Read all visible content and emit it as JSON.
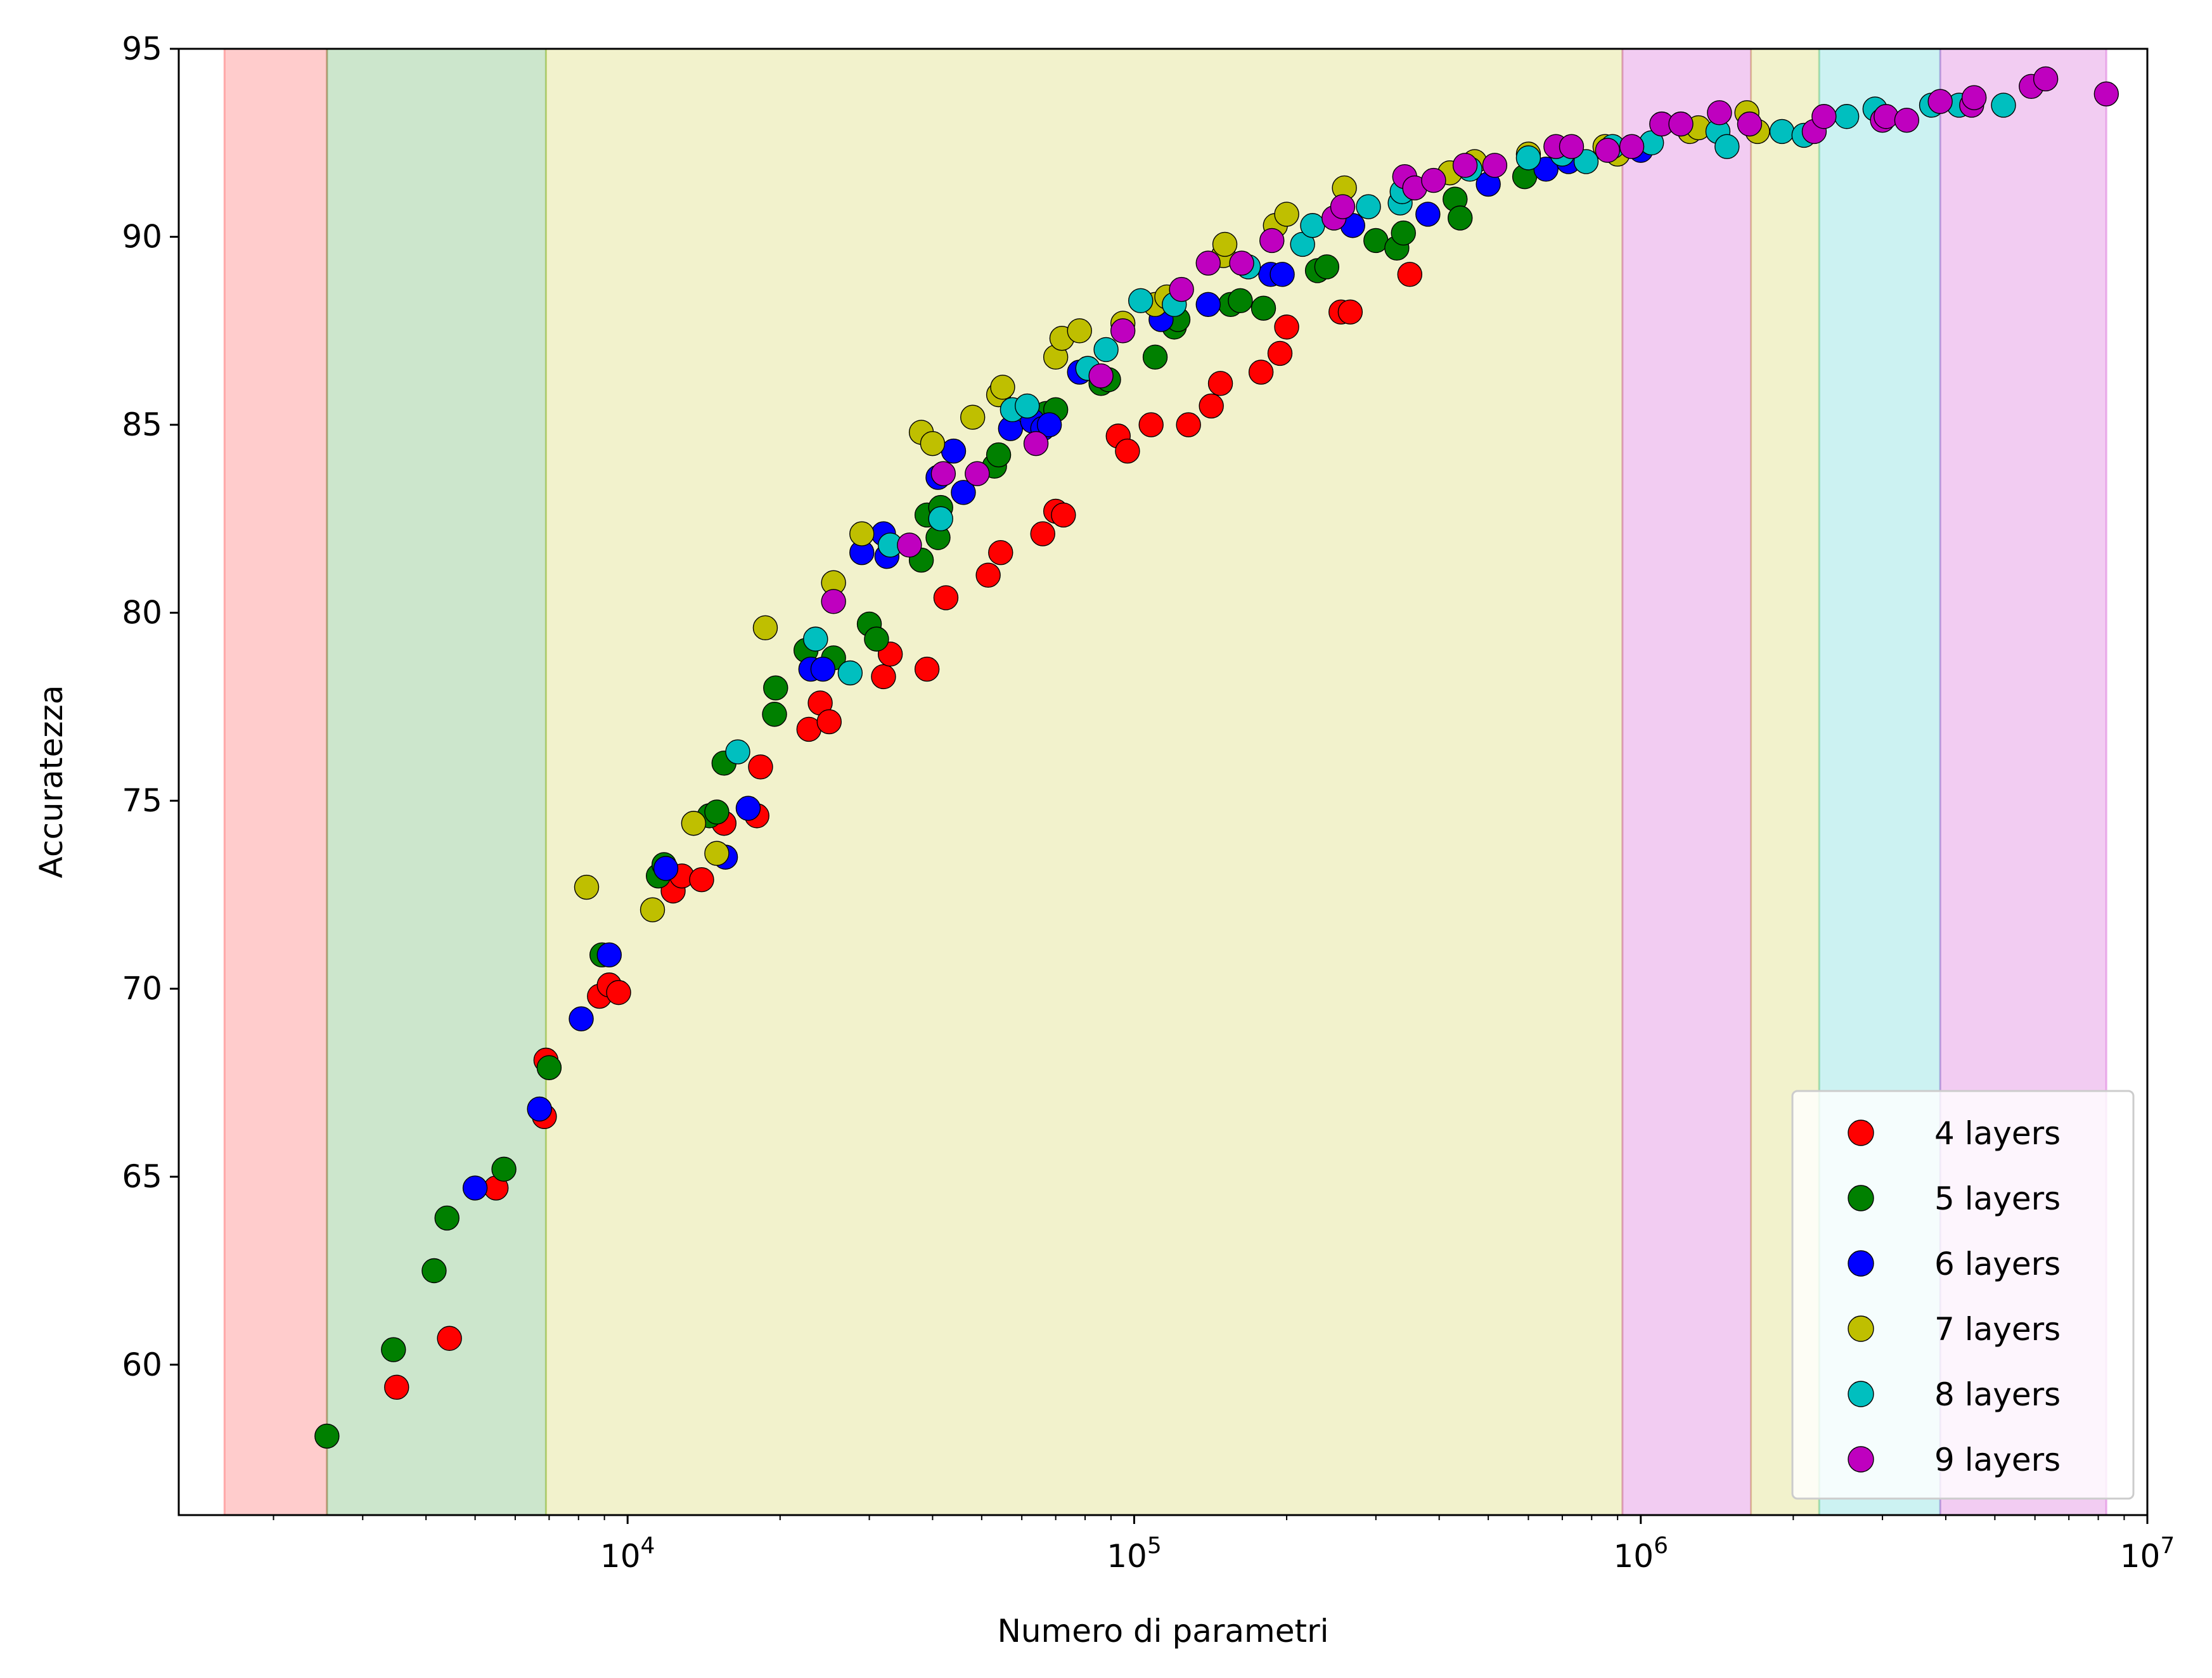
{
  "chart_data": {
    "type": "scatter",
    "title": "",
    "xlabel": "Numero di parametri",
    "ylabel": "Accuratezza",
    "xscale": "log",
    "xlim": [
      1300,
      10000000
    ],
    "ylim": [
      56,
      95
    ],
    "x_ticks": [
      {
        "value": 10000,
        "base": "10",
        "exp": "4"
      },
      {
        "value": 100000,
        "base": "10",
        "exp": "5"
      },
      {
        "value": 1000000,
        "base": "10",
        "exp": "6"
      },
      {
        "value": 10000000,
        "base": "10",
        "exp": "7"
      }
    ],
    "y_ticks": [
      "60",
      "65",
      "70",
      "75",
      "80",
      "85",
      "90",
      "95"
    ],
    "grid": false,
    "legend_position": "lower right",
    "bands": [
      {
        "x0": 1600,
        "x1": 2550,
        "color": "#ff0000"
      },
      {
        "x0": 2550,
        "x1": 6900,
        "color": "#008000"
      },
      {
        "x0": 6900,
        "x1": 920000,
        "color": "#bfbf00"
      },
      {
        "x0": 920000,
        "x1": 1650000,
        "color": "#bf00bf"
      },
      {
        "x0": 1650000,
        "x1": 2250000,
        "color": "#bfbf00"
      },
      {
        "x0": 2250000,
        "x1": 3900000,
        "color": "#00bfbf"
      },
      {
        "x0": 3900000,
        "x1": 8300000,
        "color": "#bf00bf"
      }
    ],
    "series": [
      {
        "name": "4 layers",
        "color": "#ff0000",
        "points": [
          [
            3500,
            59.4
          ],
          [
            4450,
            60.7
          ],
          [
            5500,
            64.7
          ],
          [
            6850,
            66.6
          ],
          [
            6900,
            68.1
          ],
          [
            8800,
            69.8
          ],
          [
            9200,
            70.1
          ],
          [
            9600,
            69.9
          ],
          [
            12300,
            72.6
          ],
          [
            12800,
            73.0
          ],
          [
            14000,
            72.9
          ],
          [
            15500,
            74.4
          ],
          [
            18000,
            74.6
          ],
          [
            18300,
            75.9
          ],
          [
            22800,
            76.9
          ],
          [
            24000,
            77.6
          ],
          [
            25000,
            77.1
          ],
          [
            32000,
            78.3
          ],
          [
            33000,
            78.9
          ],
          [
            39000,
            78.5
          ],
          [
            42500,
            80.4
          ],
          [
            51500,
            81.0
          ],
          [
            54500,
            81.6
          ],
          [
            66000,
            82.1
          ],
          [
            70000,
            82.7
          ],
          [
            72500,
            82.6
          ],
          [
            93000,
            84.7
          ],
          [
            97000,
            84.3
          ],
          [
            108000,
            85.0
          ],
          [
            128000,
            85.0
          ],
          [
            142000,
            85.5
          ],
          [
            148000,
            86.1
          ],
          [
            178000,
            86.4
          ],
          [
            194000,
            86.9
          ],
          [
            200000,
            87.6
          ],
          [
            256000,
            88.0
          ],
          [
            267000,
            88.0
          ],
          [
            350000,
            89.0
          ]
        ]
      },
      {
        "name": "5 layers",
        "color": "#008000",
        "points": [
          [
            2550,
            58.1
          ],
          [
            3450,
            60.4
          ],
          [
            4150,
            62.5
          ],
          [
            4400,
            63.9
          ],
          [
            5700,
            65.2
          ],
          [
            7000,
            67.9
          ],
          [
            8900,
            70.9
          ],
          [
            11500,
            73.0
          ],
          [
            11800,
            73.3
          ],
          [
            14500,
            74.6
          ],
          [
            15000,
            74.7
          ],
          [
            15500,
            76.0
          ],
          [
            19500,
            77.3
          ],
          [
            19600,
            78.0
          ],
          [
            22500,
            79.0
          ],
          [
            25500,
            78.8
          ],
          [
            30000,
            79.7
          ],
          [
            31000,
            79.3
          ],
          [
            38000,
            81.4
          ],
          [
            39000,
            82.6
          ],
          [
            41000,
            82.0
          ],
          [
            41500,
            82.8
          ],
          [
            53000,
            83.9
          ],
          [
            54000,
            84.2
          ],
          [
            67000,
            85.3
          ],
          [
            70000,
            85.4
          ],
          [
            86000,
            86.1
          ],
          [
            89000,
            86.2
          ],
          [
            110000,
            86.8
          ],
          [
            120000,
            87.6
          ],
          [
            122000,
            87.8
          ],
          [
            155000,
            88.2
          ],
          [
            162000,
            88.3
          ],
          [
            180000,
            88.1
          ],
          [
            230000,
            89.1
          ],
          [
            240000,
            89.2
          ],
          [
            300000,
            89.9
          ],
          [
            330000,
            89.7
          ],
          [
            340000,
            90.1
          ],
          [
            430000,
            91.0
          ],
          [
            440000,
            90.5
          ],
          [
            590000,
            91.6
          ]
        ]
      },
      {
        "name": "6 layers",
        "color": "#0000ff",
        "points": [
          [
            5000,
            64.7
          ],
          [
            6700,
            66.8
          ],
          [
            8100,
            69.2
          ],
          [
            9200,
            70.9
          ],
          [
            11900,
            73.2
          ],
          [
            15600,
            73.5
          ],
          [
            17300,
            74.8
          ],
          [
            23000,
            78.5
          ],
          [
            24300,
            78.5
          ],
          [
            29000,
            81.6
          ],
          [
            32000,
            82.1
          ],
          [
            32500,
            81.5
          ],
          [
            41000,
            83.6
          ],
          [
            44000,
            84.3
          ],
          [
            46000,
            83.2
          ],
          [
            57000,
            84.9
          ],
          [
            63000,
            85.1
          ],
          [
            66000,
            84.9
          ],
          [
            68000,
            85.0
          ],
          [
            78000,
            86.4
          ],
          [
            113000,
            87.8
          ],
          [
            140000,
            88.2
          ],
          [
            186000,
            89.0
          ],
          [
            196000,
            89.0
          ],
          [
            270000,
            90.3
          ],
          [
            380000,
            90.6
          ],
          [
            500000,
            91.4
          ],
          [
            650000,
            91.8
          ],
          [
            720000,
            92.0
          ],
          [
            1000000,
            92.3
          ]
        ]
      },
      {
        "name": "7 layers",
        "color": "#bfbf00",
        "points": [
          [
            8300,
            72.7
          ],
          [
            11200,
            72.1
          ],
          [
            13500,
            74.4
          ],
          [
            15000,
            73.6
          ],
          [
            18700,
            79.6
          ],
          [
            25500,
            80.8
          ],
          [
            29000,
            82.1
          ],
          [
            38000,
            84.8
          ],
          [
            40000,
            84.5
          ],
          [
            48000,
            85.2
          ],
          [
            54000,
            85.8
          ],
          [
            55000,
            86.0
          ],
          [
            70000,
            86.8
          ],
          [
            72000,
            87.3
          ],
          [
            78000,
            87.5
          ],
          [
            95000,
            87.7
          ],
          [
            110000,
            88.2
          ],
          [
            116000,
            88.4
          ],
          [
            150000,
            89.5
          ],
          [
            151000,
            89.8
          ],
          [
            190000,
            90.3
          ],
          [
            200000,
            90.6
          ],
          [
            260000,
            91.3
          ],
          [
            420000,
            91.7
          ],
          [
            470000,
            92.0
          ],
          [
            600000,
            92.2
          ],
          [
            850000,
            92.4
          ],
          [
            900000,
            92.2
          ],
          [
            1250000,
            92.8
          ],
          [
            1300000,
            92.9
          ],
          [
            1620000,
            93.3
          ],
          [
            1700000,
            92.8
          ]
        ]
      },
      {
        "name": "8 layers",
        "color": "#00bfbf",
        "points": [
          [
            16500,
            76.3
          ],
          [
            23500,
            79.3
          ],
          [
            27500,
            78.4
          ],
          [
            33000,
            81.8
          ],
          [
            41500,
            82.5
          ],
          [
            57500,
            85.4
          ],
          [
            61500,
            85.5
          ],
          [
            81000,
            86.5
          ],
          [
            88000,
            87.0
          ],
          [
            103000,
            88.3
          ],
          [
            120000,
            88.2
          ],
          [
            168000,
            89.2
          ],
          [
            215000,
            89.8
          ],
          [
            225000,
            90.3
          ],
          [
            290000,
            90.8
          ],
          [
            335000,
            90.9
          ],
          [
            338000,
            91.2
          ],
          [
            460000,
            91.8
          ],
          [
            600000,
            92.1
          ],
          [
            700000,
            92.2
          ],
          [
            780000,
            92.0
          ],
          [
            880000,
            92.4
          ],
          [
            1050000,
            92.5
          ],
          [
            1420000,
            92.8
          ],
          [
            1480000,
            92.4
          ],
          [
            1900000,
            92.8
          ],
          [
            2100000,
            92.7
          ],
          [
            2550000,
            93.2
          ],
          [
            2900000,
            93.4
          ],
          [
            3750000,
            93.5
          ],
          [
            4250000,
            93.5
          ],
          [
            5200000,
            93.5
          ]
        ]
      },
      {
        "name": "9 layers",
        "color": "#bf00bf",
        "points": [
          [
            25500,
            80.3
          ],
          [
            36000,
            81.8
          ],
          [
            42000,
            83.7
          ],
          [
            49000,
            83.7
          ],
          [
            64000,
            84.5
          ],
          [
            86000,
            86.3
          ],
          [
            95000,
            87.5
          ],
          [
            124000,
            88.6
          ],
          [
            140000,
            89.3
          ],
          [
            163000,
            89.3
          ],
          [
            187000,
            89.9
          ],
          [
            248000,
            90.5
          ],
          [
            258000,
            90.8
          ],
          [
            342000,
            91.6
          ],
          [
            358000,
            91.3
          ],
          [
            390000,
            91.5
          ],
          [
            450000,
            91.9
          ],
          [
            515000,
            91.9
          ],
          [
            680000,
            92.4
          ],
          [
            730000,
            92.4
          ],
          [
            860000,
            92.3
          ],
          [
            960000,
            92.4
          ],
          [
            1100000,
            93.0
          ],
          [
            1200000,
            93.0
          ],
          [
            1430000,
            93.3
          ],
          [
            1640000,
            93.0
          ],
          [
            2200000,
            92.8
          ],
          [
            2300000,
            93.2
          ],
          [
            3000000,
            93.1
          ],
          [
            3050000,
            93.2
          ],
          [
            3350000,
            93.1
          ],
          [
            3900000,
            93.6
          ],
          [
            4500000,
            93.5
          ],
          [
            4550000,
            93.7
          ],
          [
            5900000,
            94.0
          ],
          [
            6300000,
            94.2
          ],
          [
            8300000,
            93.8
          ]
        ]
      }
    ]
  }
}
